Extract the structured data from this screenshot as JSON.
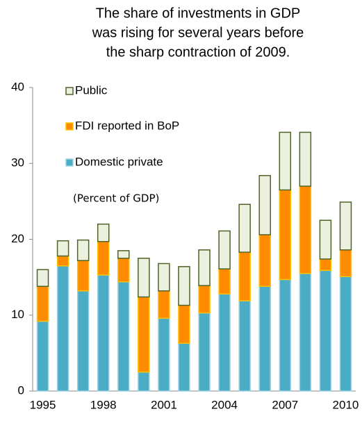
{
  "chart_data": {
    "type": "stacked_bar",
    "title": [
      "The share of investments in GDP",
      "was rising for several years before",
      "the sharp contraction of 2009."
    ],
    "annotation": "(Percent of GDP)",
    "categories": [
      "1995",
      null,
      null,
      "1998",
      null,
      null,
      "2001",
      null,
      null,
      "2004",
      null,
      null,
      "2007",
      null,
      null,
      "2010"
    ],
    "series": [
      {
        "name": "Domestic private",
        "color": "#4bacc6",
        "edge": "#9fd3e3",
        "values": [
          9.2,
          16.5,
          13.2,
          15.3,
          14.4,
          2.5,
          9.6,
          6.3,
          10.3,
          12.8,
          11.9,
          13.8,
          14.7,
          15.5,
          15.9,
          15.1
        ]
      },
      {
        "name": "FDI reported in BoP",
        "color": "#ff8c00",
        "edge": "#ffc000",
        "values": [
          4.6,
          1.3,
          4.0,
          4.4,
          3.1,
          9.9,
          3.6,
          5.0,
          3.6,
          3.3,
          6.4,
          6.8,
          11.8,
          11.5,
          1.5,
          3.5
        ]
      },
      {
        "name": "Public",
        "color": "#ebf1de",
        "edge": "#4f6228",
        "values": [
          2.2,
          2.0,
          2.7,
          2.3,
          1.0,
          5.1,
          3.6,
          5.1,
          4.7,
          5.0,
          6.3,
          7.8,
          7.6,
          7.1,
          5.1,
          6.3
        ]
      }
    ],
    "ylim": [
      0,
      40
    ],
    "yticks": [
      0,
      10,
      20,
      30,
      40
    ],
    "grid": false
  }
}
